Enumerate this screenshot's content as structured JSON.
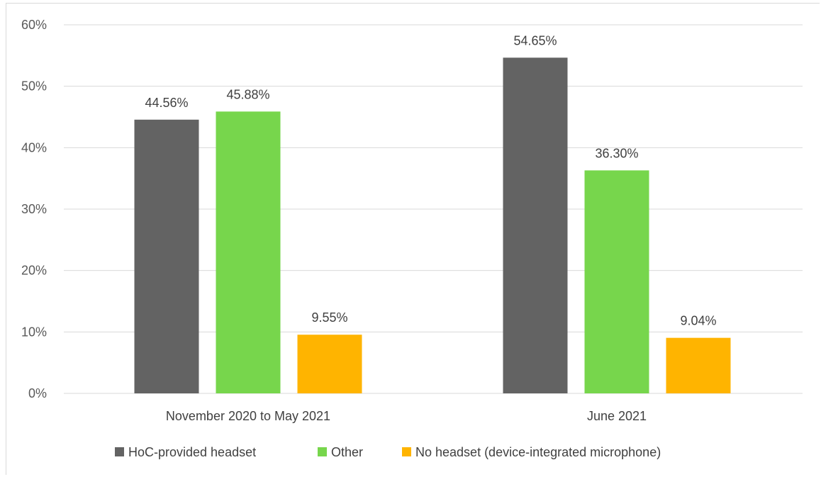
{
  "chart_data": {
    "type": "bar",
    "title": "",
    "xlabel": "",
    "ylabel": "",
    "categories": [
      "November 2020 to May 2021",
      "June 2021"
    ],
    "series": [
      {
        "name": "HoC-provided headset",
        "values": [
          44.56,
          54.65
        ],
        "labels": [
          "44.56%",
          "54.65%"
        ],
        "color": "#636363"
      },
      {
        "name": "Other",
        "values": [
          45.88,
          36.3
        ],
        "labels": [
          "45.88%",
          "36.30%"
        ],
        "color": "#77d64c"
      },
      {
        "name": "No headset (device-integrated microphone)",
        "values": [
          9.55,
          9.04
        ],
        "labels": [
          "9.55%",
          "9.04%"
        ],
        "color": "#ffb400"
      }
    ],
    "ylim": [
      0,
      60
    ],
    "yticks": [
      0,
      10,
      20,
      30,
      40,
      50,
      60
    ],
    "ytick_labels": [
      "0%",
      "10%",
      "20%",
      "30%",
      "40%",
      "50%",
      "60%"
    ],
    "grid": true,
    "legend_position": "bottom"
  }
}
